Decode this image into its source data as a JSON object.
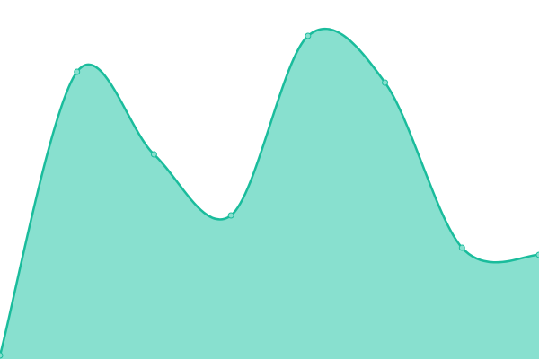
{
  "chart_data": {
    "type": "area",
    "x": [
      0,
      1,
      2,
      3,
      4,
      5,
      6,
      7
    ],
    "values": [
      1,
      80,
      57,
      40,
      90,
      77,
      31,
      29
    ],
    "ylim": [
      0,
      100
    ],
    "smooth": true,
    "grid": false,
    "axes_visible": false,
    "legend": "none",
    "colors": {
      "line": "#1abc9c",
      "fill": "#88e0cf",
      "marker_fill": "#88e0cf"
    }
  }
}
